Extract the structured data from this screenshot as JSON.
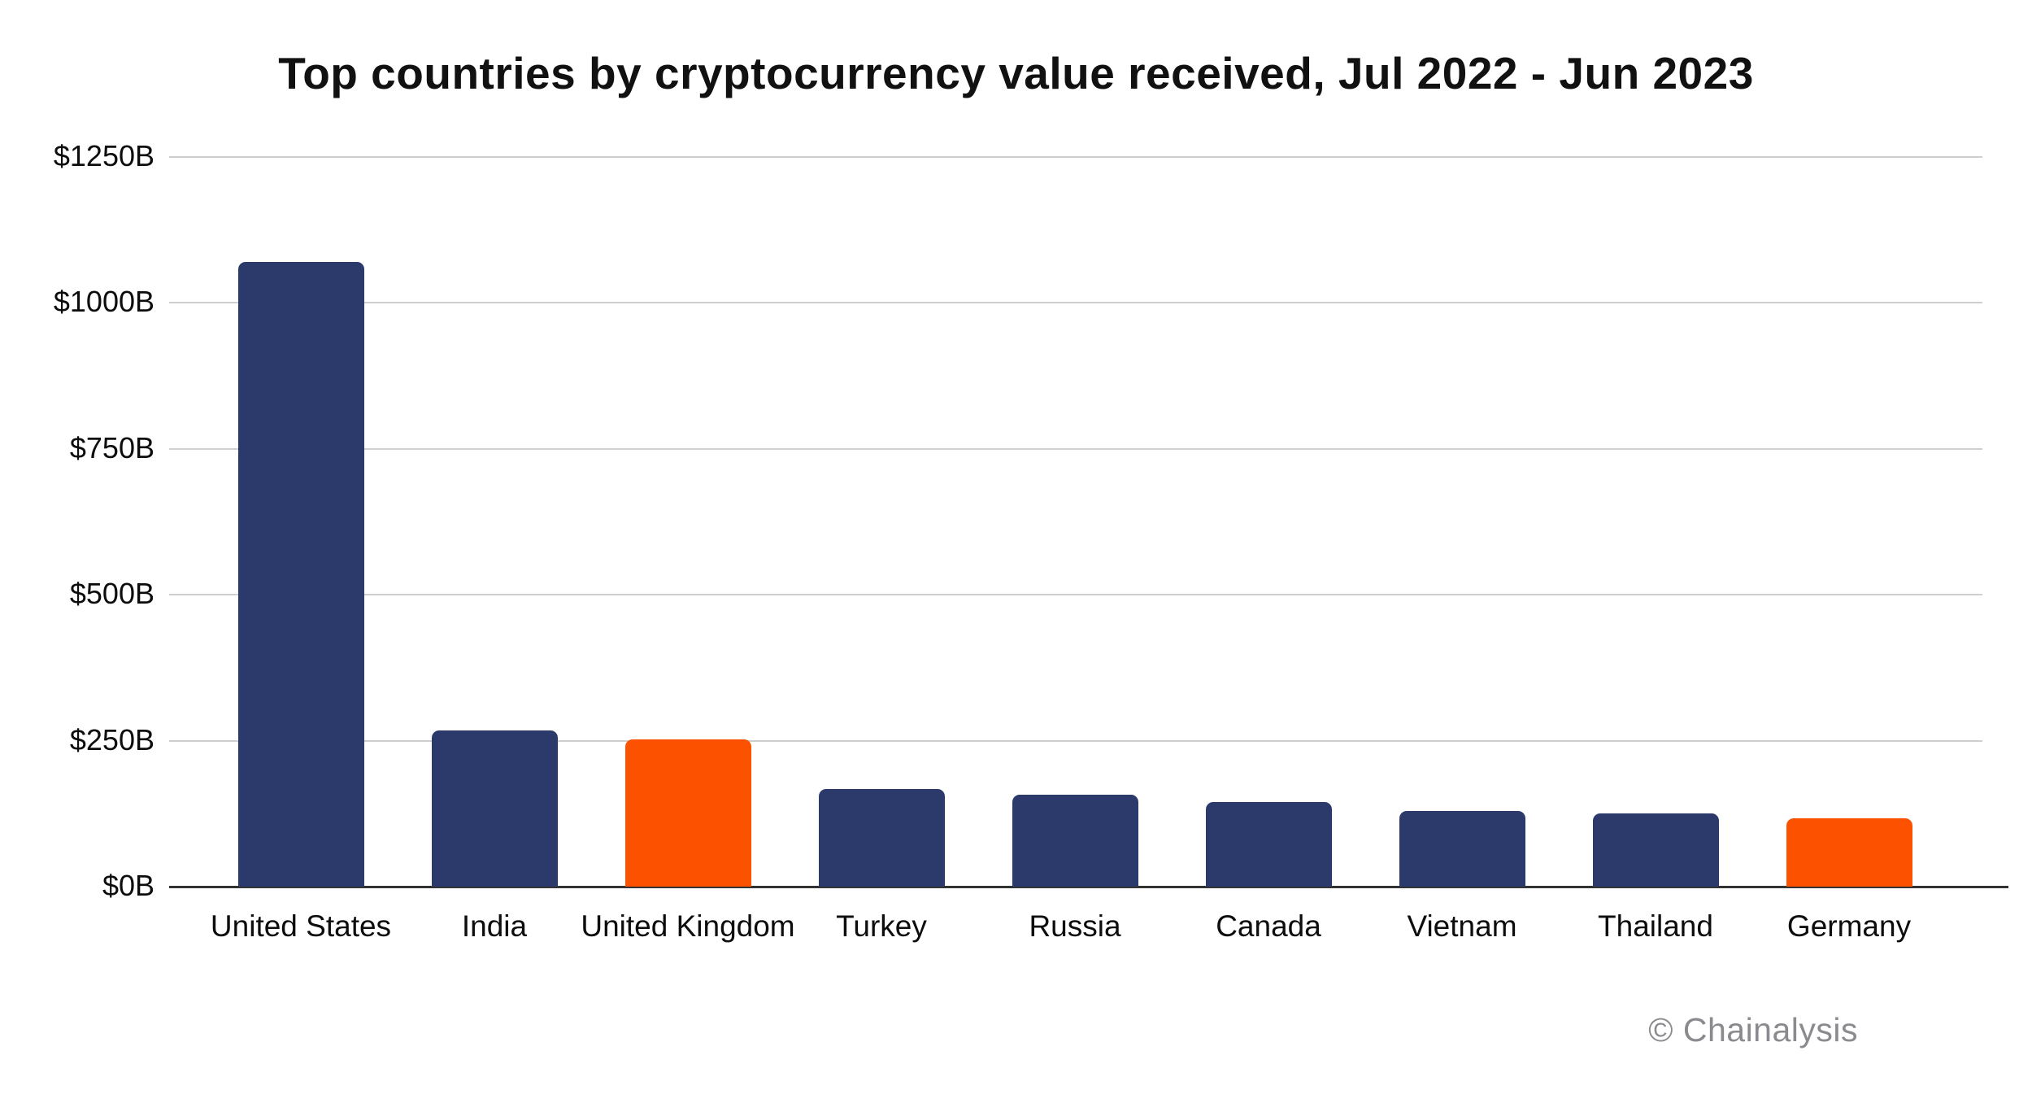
{
  "title": "Top countries by cryptocurrency value received, Jul 2022 - Jun 2023",
  "watermark": "© Chainalysis",
  "colors": {
    "navy": "#2B3A6B",
    "orange": "#FC5200",
    "gridline": "#CFCFCF",
    "axis": "#333333",
    "label_text": "#0D0D0D",
    "watermark_gray": "#8A8A8F",
    "background": "#FFFFFF"
  },
  "chart_data": {
    "type": "bar",
    "title": "Top countries by cryptocurrency value received, Jul 2022 - Jun 2023",
    "categories": [
      "United States",
      "India",
      "United Kingdom",
      "Turkey",
      "Russia",
      "Canada",
      "Vietnam",
      "Thailand",
      "Germany"
    ],
    "values": [
      1070,
      268,
      252,
      167,
      158,
      145,
      129,
      125,
      117
    ],
    "values_unit": "billions USD",
    "bar_color_roles": [
      "navy",
      "navy",
      "orange",
      "navy",
      "navy",
      "navy",
      "navy",
      "navy",
      "orange"
    ],
    "highlighted_categories": [
      "United Kingdom",
      "Germany"
    ],
    "xlabel": "",
    "ylabel": "",
    "ylim": [
      0,
      1250
    ],
    "yticks": [
      {
        "value": 0,
        "label": "$0B"
      },
      {
        "value": 250,
        "label": "$250B"
      },
      {
        "value": 500,
        "label": "$500B"
      },
      {
        "value": 750,
        "label": "$750B"
      },
      {
        "value": 1000,
        "label": "$1000B"
      },
      {
        "value": 1250,
        "label": "$1250B"
      }
    ],
    "grid": "horizontal",
    "legend": "none"
  }
}
